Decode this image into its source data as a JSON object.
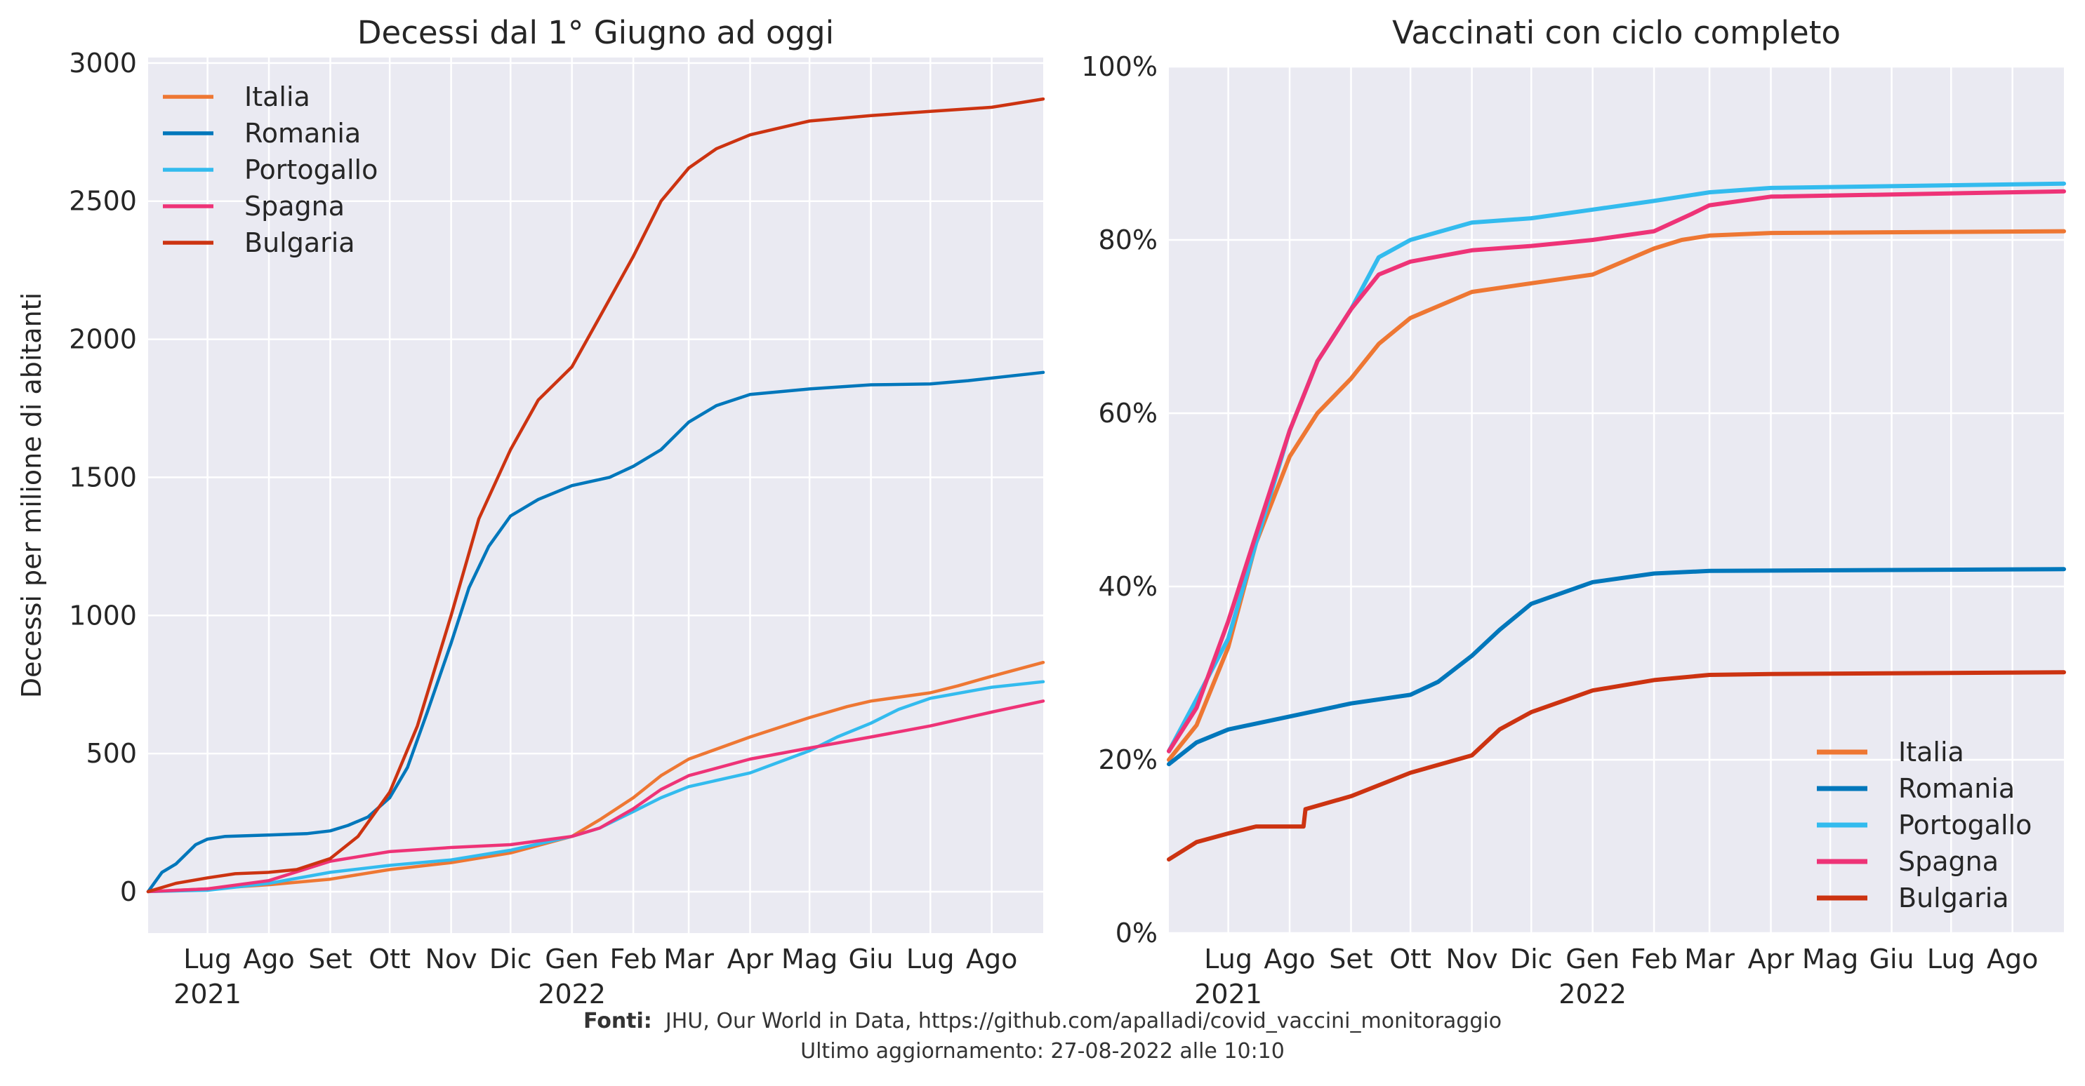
{
  "chart_data": [
    {
      "type": "line",
      "title": "Decessi dal 1° Giugno ad oggi",
      "ylabel": "Decessi per milione di abitanti",
      "xlabel": "",
      "x_range": [
        "2021-06-01",
        "2022-08-27"
      ],
      "ylim": [
        -150,
        3020
      ],
      "yticks": [
        "0",
        "500",
        "1000",
        "1500",
        "2000",
        "2500",
        "3000"
      ],
      "ytick_values": [
        0,
        500,
        1000,
        1500,
        2000,
        2500,
        3000
      ],
      "xticks": [
        {
          "date": "2021-07-01",
          "label": "Lug",
          "year": "2021"
        },
        {
          "date": "2021-08-01",
          "label": "Ago"
        },
        {
          "date": "2021-09-01",
          "label": "Set"
        },
        {
          "date": "2021-10-01",
          "label": "Ott"
        },
        {
          "date": "2021-11-01",
          "label": "Nov"
        },
        {
          "date": "2021-12-01",
          "label": "Dic"
        },
        {
          "date": "2022-01-01",
          "label": "Gen",
          "year": "2022"
        },
        {
          "date": "2022-02-01",
          "label": "Feb"
        },
        {
          "date": "2022-03-01",
          "label": "Mar"
        },
        {
          "date": "2022-04-01",
          "label": "Apr"
        },
        {
          "date": "2022-05-01",
          "label": "Mag"
        },
        {
          "date": "2022-06-01",
          "label": "Giu"
        },
        {
          "date": "2022-07-01",
          "label": "Lug"
        },
        {
          "date": "2022-08-01",
          "label": "Ago"
        }
      ],
      "grid": true,
      "legend": "top-left",
      "series": [
        {
          "name": "Italia",
          "color": "#EE7733",
          "points": [
            [
              "2021-06-01",
              0
            ],
            [
              "2021-07-01",
              10
            ],
            [
              "2021-08-01",
              25
            ],
            [
              "2021-09-01",
              45
            ],
            [
              "2021-10-01",
              80
            ],
            [
              "2021-11-01",
              105
            ],
            [
              "2021-12-01",
              140
            ],
            [
              "2022-01-01",
              200
            ],
            [
              "2022-01-15",
              260
            ],
            [
              "2022-02-01",
              340
            ],
            [
              "2022-02-15",
              420
            ],
            [
              "2022-03-01",
              480
            ],
            [
              "2022-04-01",
              560
            ],
            [
              "2022-05-01",
              630
            ],
            [
              "2022-05-20",
              670
            ],
            [
              "2022-06-01",
              690
            ],
            [
              "2022-07-01",
              720
            ],
            [
              "2022-07-15",
              745
            ],
            [
              "2022-08-01",
              780
            ],
            [
              "2022-08-27",
              830
            ]
          ]
        },
        {
          "name": "Romania",
          "color": "#0077BB",
          "points": [
            [
              "2021-06-01",
              0
            ],
            [
              "2021-06-08",
              70
            ],
            [
              "2021-06-15",
              100
            ],
            [
              "2021-06-25",
              170
            ],
            [
              "2021-07-01",
              190
            ],
            [
              "2021-07-10",
              200
            ],
            [
              "2021-08-01",
              205
            ],
            [
              "2021-08-20",
              210
            ],
            [
              "2021-09-01",
              220
            ],
            [
              "2021-09-10",
              240
            ],
            [
              "2021-09-20",
              270
            ],
            [
              "2021-10-01",
              340
            ],
            [
              "2021-10-10",
              450
            ],
            [
              "2021-10-20",
              650
            ],
            [
              "2021-11-01",
              900
            ],
            [
              "2021-11-10",
              1100
            ],
            [
              "2021-11-20",
              1250
            ],
            [
              "2021-12-01",
              1360
            ],
            [
              "2021-12-15",
              1420
            ],
            [
              "2022-01-01",
              1470
            ],
            [
              "2022-01-20",
              1500
            ],
            [
              "2022-02-01",
              1540
            ],
            [
              "2022-02-15",
              1600
            ],
            [
              "2022-03-01",
              1700
            ],
            [
              "2022-03-15",
              1760
            ],
            [
              "2022-04-01",
              1800
            ],
            [
              "2022-05-01",
              1820
            ],
            [
              "2022-06-01",
              1835
            ],
            [
              "2022-07-01",
              1838
            ],
            [
              "2022-07-20",
              1850
            ],
            [
              "2022-08-27",
              1880
            ]
          ]
        },
        {
          "name": "Portogallo",
          "color": "#33BBEE",
          "points": [
            [
              "2021-06-01",
              0
            ],
            [
              "2021-07-01",
              5
            ],
            [
              "2021-08-01",
              30
            ],
            [
              "2021-09-01",
              70
            ],
            [
              "2021-10-01",
              95
            ],
            [
              "2021-11-01",
              115
            ],
            [
              "2021-12-01",
              150
            ],
            [
              "2022-01-01",
              200
            ],
            [
              "2022-01-15",
              230
            ],
            [
              "2022-02-01",
              290
            ],
            [
              "2022-02-15",
              340
            ],
            [
              "2022-03-01",
              380
            ],
            [
              "2022-04-01",
              430
            ],
            [
              "2022-05-01",
              510
            ],
            [
              "2022-05-15",
              560
            ],
            [
              "2022-06-01",
              610
            ],
            [
              "2022-06-15",
              660
            ],
            [
              "2022-07-01",
              700
            ],
            [
              "2022-08-01",
              740
            ],
            [
              "2022-08-27",
              760
            ]
          ]
        },
        {
          "name": "Spagna",
          "color": "#EE3377",
          "points": [
            [
              "2021-06-01",
              0
            ],
            [
              "2021-07-01",
              10
            ],
            [
              "2021-08-01",
              40
            ],
            [
              "2021-09-01",
              110
            ],
            [
              "2021-10-01",
              145
            ],
            [
              "2021-11-01",
              160
            ],
            [
              "2021-12-01",
              170
            ],
            [
              "2022-01-01",
              200
            ],
            [
              "2022-01-15",
              230
            ],
            [
              "2022-02-01",
              300
            ],
            [
              "2022-02-15",
              370
            ],
            [
              "2022-03-01",
              420
            ],
            [
              "2022-04-01",
              480
            ],
            [
              "2022-05-01",
              520
            ],
            [
              "2022-06-01",
              560
            ],
            [
              "2022-07-01",
              600
            ],
            [
              "2022-08-01",
              650
            ],
            [
              "2022-08-27",
              690
            ]
          ]
        },
        {
          "name": "Bulgaria",
          "color": "#CC3311",
          "points": [
            [
              "2021-06-01",
              0
            ],
            [
              "2021-06-15",
              30
            ],
            [
              "2021-07-01",
              50
            ],
            [
              "2021-07-15",
              65
            ],
            [
              "2021-08-01",
              70
            ],
            [
              "2021-08-15",
              80
            ],
            [
              "2021-09-01",
              120
            ],
            [
              "2021-09-15",
              200
            ],
            [
              "2021-10-01",
              360
            ],
            [
              "2021-10-15",
              600
            ],
            [
              "2021-11-01",
              1000
            ],
            [
              "2021-11-15",
              1350
            ],
            [
              "2021-12-01",
              1600
            ],
            [
              "2021-12-15",
              1780
            ],
            [
              "2022-01-01",
              1900
            ],
            [
              "2022-01-15",
              2080
            ],
            [
              "2022-02-01",
              2300
            ],
            [
              "2022-02-15",
              2500
            ],
            [
              "2022-03-01",
              2620
            ],
            [
              "2022-03-15",
              2690
            ],
            [
              "2022-04-01",
              2740
            ],
            [
              "2022-05-01",
              2790
            ],
            [
              "2022-06-01",
              2810
            ],
            [
              "2022-07-01",
              2825
            ],
            [
              "2022-08-01",
              2840
            ],
            [
              "2022-08-27",
              2870
            ]
          ]
        }
      ]
    },
    {
      "type": "line",
      "title": "Vaccinati con ciclo completo",
      "xlabel": "",
      "ylabel": "",
      "x_range": [
        "2021-06-01",
        "2022-08-27"
      ],
      "ylim": [
        0,
        100
      ],
      "yticks": [
        "0%",
        "20%",
        "40%",
        "60%",
        "80%",
        "100%"
      ],
      "ytick_values": [
        0,
        20,
        40,
        60,
        80,
        100
      ],
      "xticks": [
        {
          "date": "2021-07-01",
          "label": "Lug",
          "year": "2021"
        },
        {
          "date": "2021-08-01",
          "label": "Ago"
        },
        {
          "date": "2021-09-01",
          "label": "Set"
        },
        {
          "date": "2021-10-01",
          "label": "Ott"
        },
        {
          "date": "2021-11-01",
          "label": "Nov"
        },
        {
          "date": "2021-12-01",
          "label": "Dic"
        },
        {
          "date": "2022-01-01",
          "label": "Gen",
          "year": "2022"
        },
        {
          "date": "2022-02-01",
          "label": "Feb"
        },
        {
          "date": "2022-03-01",
          "label": "Mar"
        },
        {
          "date": "2022-04-01",
          "label": "Apr"
        },
        {
          "date": "2022-05-01",
          "label": "Mag"
        },
        {
          "date": "2022-06-01",
          "label": "Giu"
        },
        {
          "date": "2022-07-01",
          "label": "Lug"
        },
        {
          "date": "2022-08-01",
          "label": "Ago"
        }
      ],
      "grid": true,
      "legend": "bottom-right",
      "series": [
        {
          "name": "Italia",
          "color": "#EE7733",
          "points": [
            [
              "2021-06-01",
              20
            ],
            [
              "2021-06-15",
              24
            ],
            [
              "2021-07-01",
              33
            ],
            [
              "2021-07-15",
              45
            ],
            [
              "2021-08-01",
              55
            ],
            [
              "2021-08-15",
              60
            ],
            [
              "2021-09-01",
              64
            ],
            [
              "2021-09-15",
              68
            ],
            [
              "2021-10-01",
              71
            ],
            [
              "2021-11-01",
              74
            ],
            [
              "2021-12-01",
              75
            ],
            [
              "2022-01-01",
              76
            ],
            [
              "2022-02-01",
              79
            ],
            [
              "2022-02-15",
              80
            ],
            [
              "2022-03-01",
              80.5
            ],
            [
              "2022-04-01",
              80.8
            ],
            [
              "2022-08-27",
              81
            ]
          ]
        },
        {
          "name": "Romania",
          "color": "#0077BB",
          "points": [
            [
              "2021-06-01",
              19.5
            ],
            [
              "2021-06-15",
              22
            ],
            [
              "2021-07-01",
              23.5
            ],
            [
              "2021-08-01",
              25
            ],
            [
              "2021-09-01",
              26.5
            ],
            [
              "2021-10-01",
              27.5
            ],
            [
              "2021-10-15",
              29
            ],
            [
              "2021-11-01",
              32
            ],
            [
              "2021-11-15",
              35
            ],
            [
              "2021-12-01",
              38
            ],
            [
              "2022-01-01",
              40.5
            ],
            [
              "2022-02-01",
              41.5
            ],
            [
              "2022-03-01",
              41.8
            ],
            [
              "2022-08-27",
              42
            ]
          ]
        },
        {
          "name": "Portogallo",
          "color": "#33BBEE",
          "points": [
            [
              "2021-06-01",
              21
            ],
            [
              "2021-06-15",
              27
            ],
            [
              "2021-07-01",
              34
            ],
            [
              "2021-07-15",
              45
            ],
            [
              "2021-08-01",
              58
            ],
            [
              "2021-08-15",
              66
            ],
            [
              "2021-09-01",
              72
            ],
            [
              "2021-09-15",
              78
            ],
            [
              "2021-10-01",
              80
            ],
            [
              "2021-11-01",
              82
            ],
            [
              "2021-12-01",
              82.5
            ],
            [
              "2022-01-01",
              83.5
            ],
            [
              "2022-02-01",
              84.5
            ],
            [
              "2022-03-01",
              85.5
            ],
            [
              "2022-04-01",
              86
            ],
            [
              "2022-08-27",
              86.5
            ]
          ]
        },
        {
          "name": "Spagna",
          "color": "#EE3377",
          "points": [
            [
              "2021-06-01",
              21
            ],
            [
              "2021-06-15",
              26
            ],
            [
              "2021-07-01",
              36
            ],
            [
              "2021-07-15",
              46
            ],
            [
              "2021-08-01",
              58
            ],
            [
              "2021-08-15",
              66
            ],
            [
              "2021-09-01",
              72
            ],
            [
              "2021-09-15",
              76
            ],
            [
              "2021-10-01",
              77.5
            ],
            [
              "2021-11-01",
              78.8
            ],
            [
              "2021-12-01",
              79.3
            ],
            [
              "2022-01-01",
              80
            ],
            [
              "2022-02-01",
              81
            ],
            [
              "2022-02-20",
              83
            ],
            [
              "2022-03-01",
              84
            ],
            [
              "2022-04-01",
              85
            ],
            [
              "2022-08-27",
              85.6
            ]
          ]
        },
        {
          "name": "Bulgaria",
          "color": "#CC3311",
          "points": [
            [
              "2021-06-01",
              8.5
            ],
            [
              "2021-06-15",
              10.5
            ],
            [
              "2021-07-01",
              11.5
            ],
            [
              "2021-07-15",
              12.3
            ],
            [
              "2021-08-08",
              12.3
            ],
            [
              "2021-08-09",
              14.3
            ],
            [
              "2021-09-01",
              15.8
            ],
            [
              "2021-10-01",
              18.5
            ],
            [
              "2021-11-01",
              20.5
            ],
            [
              "2021-11-15",
              23.5
            ],
            [
              "2021-12-01",
              25.5
            ],
            [
              "2022-01-01",
              28
            ],
            [
              "2022-02-01",
              29.2
            ],
            [
              "2022-03-01",
              29.8
            ],
            [
              "2022-04-01",
              29.9
            ],
            [
              "2022-08-27",
              30.1
            ]
          ]
        }
      ]
    }
  ],
  "footer": {
    "sources_label": "Fonti:",
    "sources": "JHU, Our World in Data, https://github.com/apalladi/covid_vaccini_monitoraggio",
    "updated": "Ultimo aggiornamento: 27-08-2022 alle 10:10"
  }
}
